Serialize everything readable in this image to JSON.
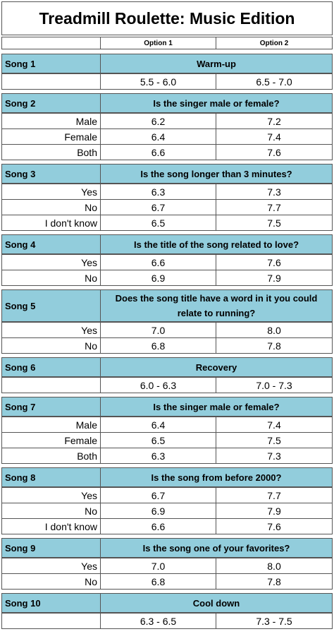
{
  "title": "Treadmill Roulette: Music Edition",
  "columns": [
    "Option 1",
    "Option 2"
  ],
  "sections": [
    {
      "song": "Song 1",
      "question": "Warm-up",
      "rows": [
        {
          "values": [
            "5.5 - 6.0",
            "6.5 - 7.0"
          ]
        }
      ]
    },
    {
      "song": "Song 2",
      "question": "Is the singer male or female?",
      "rows": [
        {
          "label": "Male",
          "values": [
            "6.2",
            "7.2"
          ]
        },
        {
          "label": "Female",
          "values": [
            "6.4",
            "7.4"
          ]
        },
        {
          "label": "Both",
          "values": [
            "6.6",
            "7.6"
          ]
        }
      ]
    },
    {
      "song": "Song 3",
      "question": "Is the song longer than 3 minutes?",
      "rows": [
        {
          "label": "Yes",
          "values": [
            "6.3",
            "7.3"
          ]
        },
        {
          "label": "No",
          "values": [
            "6.7",
            "7.7"
          ]
        },
        {
          "label": "I don't know",
          "values": [
            "6.5",
            "7.5"
          ]
        }
      ]
    },
    {
      "song": "Song 4",
      "question": "Is the title of the song related to love?",
      "rows": [
        {
          "label": "Yes",
          "values": [
            "6.6",
            "7.6"
          ]
        },
        {
          "label": "No",
          "values": [
            "6.9",
            "7.9"
          ]
        }
      ]
    },
    {
      "song": "Song 5",
      "question": "Does the song title have a word in it you could relate to running?",
      "rows": [
        {
          "label": "Yes",
          "values": [
            "7.0",
            "8.0"
          ]
        },
        {
          "label": "No",
          "values": [
            "6.8",
            "7.8"
          ]
        }
      ]
    },
    {
      "song": "Song 6",
      "question": "Recovery",
      "rows": [
        {
          "values": [
            "6.0 - 6.3",
            "7.0 - 7.3"
          ]
        }
      ]
    },
    {
      "song": "Song 7",
      "question": "Is the singer male or female?",
      "rows": [
        {
          "label": "Male",
          "values": [
            "6.4",
            "7.4"
          ]
        },
        {
          "label": "Female",
          "values": [
            "6.5",
            "7.5"
          ]
        },
        {
          "label": "Both",
          "values": [
            "6.3",
            "7.3"
          ]
        }
      ]
    },
    {
      "song": "Song 8",
      "question": "Is the song from before 2000?",
      "rows": [
        {
          "label": "Yes",
          "values": [
            "6.7",
            "7.7"
          ]
        },
        {
          "label": "No",
          "values": [
            "6.9",
            "7.9"
          ]
        },
        {
          "label": "I don't know",
          "values": [
            "6.6",
            "7.6"
          ]
        }
      ]
    },
    {
      "song": "Song 9",
      "question": "Is the song one of your favorites?",
      "rows": [
        {
          "label": "Yes",
          "values": [
            "7.0",
            "8.0"
          ]
        },
        {
          "label": "No",
          "values": [
            "6.8",
            "7.8"
          ]
        }
      ]
    },
    {
      "song": "Song 10",
      "question": "Cool down",
      "rows": [
        {
          "values": [
            "6.3 - 6.5",
            "7.3 - 7.5"
          ]
        }
      ]
    }
  ]
}
